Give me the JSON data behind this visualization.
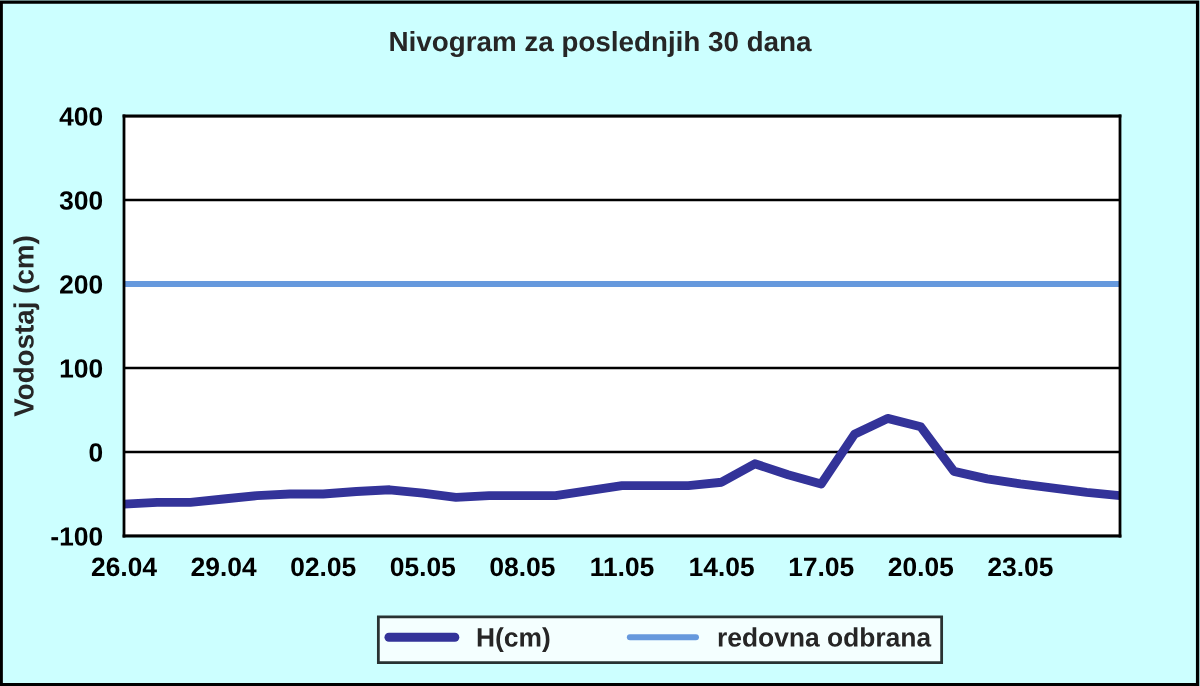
{
  "chart_data": {
    "type": "line",
    "title": "Nivogram za poslednjih 30 dana",
    "ylabel": "Vodostaj (cm)",
    "categories": [
      "26.04",
      null,
      null,
      "29.04",
      null,
      null,
      "02.05",
      null,
      null,
      "05.05",
      null,
      null,
      "08.05",
      null,
      null,
      "11.05",
      null,
      null,
      "14.05",
      null,
      null,
      "17.05",
      null,
      null,
      "20.05",
      null,
      null,
      "23.05",
      null,
      null,
      null
    ],
    "series": [
      {
        "name": "H(cm)",
        "color": "#333399",
        "values": [
          -62,
          -60,
          -60,
          -56,
          -52,
          -50,
          -50,
          -47,
          -45,
          -49,
          -54,
          -52,
          -52,
          -52,
          -46,
          -40,
          -40,
          -40,
          -36,
          -14,
          -27,
          -38,
          21,
          40,
          30,
          -23,
          -32,
          -38,
          -43,
          -48,
          -52
        ]
      }
    ],
    "ref_lines": [
      {
        "axis": "y",
        "value": 200,
        "label": "redovna odbrana",
        "color": "#6699dd"
      }
    ],
    "ylim": [
      -100,
      400
    ],
    "yticks": [
      -100,
      0,
      100,
      200,
      300,
      400
    ],
    "grid": "y",
    "legend": "bottom",
    "line_style": "solid",
    "marker": "none"
  }
}
